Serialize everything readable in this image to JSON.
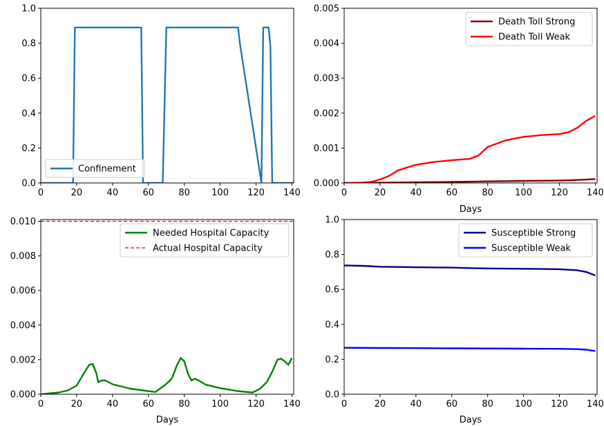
{
  "chart_data": [
    {
      "id": "confinement",
      "type": "line",
      "xlabel": "",
      "ylabel": "",
      "xlim": [
        0,
        141
      ],
      "ylim": [
        0,
        1.0
      ],
      "xticks": [
        "0",
        "20",
        "40",
        "60",
        "80",
        "100",
        "120",
        "140"
      ],
      "xtick_values": [
        0,
        20,
        40,
        60,
        80,
        100,
        120,
        140
      ],
      "yticks": [
        "0.0",
        "0.2",
        "0.4",
        "0.6",
        "0.8",
        "1.0"
      ],
      "ytick_values": [
        0,
        0.2,
        0.4,
        0.6,
        0.8,
        1.0
      ],
      "legend_placement": "lower-left",
      "series": [
        {
          "name": "Confinement",
          "color": "#1f77b4",
          "dash": false,
          "x": [
            0,
            18,
            19,
            56,
            57,
            68,
            70,
            110,
            111,
            123,
            124,
            127,
            128,
            129,
            141
          ],
          "y": [
            0,
            0,
            0.89,
            0.89,
            0,
            0,
            0.89,
            0.89,
            0.8,
            0,
            0.89,
            0.89,
            0.78,
            0,
            0
          ]
        }
      ]
    },
    {
      "id": "death-toll",
      "type": "line",
      "xlabel": "Days",
      "ylabel": "",
      "xlim": [
        0,
        141
      ],
      "ylim": [
        0,
        0.005
      ],
      "xticks": [
        "0",
        "20",
        "40",
        "60",
        "80",
        "100",
        "120",
        "140"
      ],
      "xtick_values": [
        0,
        20,
        40,
        60,
        80,
        100,
        120,
        140
      ],
      "yticks": [
        "0.000",
        "0.001",
        "0.002",
        "0.003",
        "0.004",
        "0.005"
      ],
      "ytick_values": [
        0,
        0.001,
        0.002,
        0.003,
        0.004,
        0.005
      ],
      "legend_placement": "upper-right",
      "series": [
        {
          "name": "Death Toll Strong",
          "color": "#8b0000",
          "dash": false,
          "x": [
            0,
            20,
            40,
            60,
            80,
            100,
            120,
            130,
            140
          ],
          "y": [
            0,
            8e-06,
            2e-05,
            3e-05,
            4.5e-05,
            6e-05,
            7e-05,
            8.5e-05,
            0.00011
          ]
        },
        {
          "name": "Death Toll Weak",
          "color": "#ff0000",
          "dash": false,
          "x": [
            0,
            10,
            15,
            20,
            25,
            30,
            35,
            40,
            50,
            60,
            70,
            75,
            80,
            90,
            100,
            110,
            120,
            125,
            130,
            135,
            140
          ],
          "y": [
            0,
            1e-05,
            3e-05,
            0.0001,
            0.0002,
            0.00036,
            0.00044,
            0.00052,
            0.0006,
            0.00065,
            0.00069,
            0.00079,
            0.00103,
            0.00122,
            0.00132,
            0.00137,
            0.0014,
            0.00145,
            0.00158,
            0.00178,
            0.00192
          ]
        }
      ]
    },
    {
      "id": "hospital",
      "type": "line",
      "xlabel": "Days",
      "ylabel": "",
      "xlim": [
        0,
        141
      ],
      "ylim": [
        0,
        0.0101
      ],
      "xticks": [
        "0",
        "20",
        "40",
        "60",
        "80",
        "100",
        "120",
        "140"
      ],
      "xtick_values": [
        0,
        20,
        40,
        60,
        80,
        100,
        120,
        140
      ],
      "yticks": [
        "0.000",
        "0.002",
        "0.004",
        "0.006",
        "0.008",
        "0.010"
      ],
      "ytick_values": [
        0,
        0.002,
        0.004,
        0.006,
        0.008,
        0.01
      ],
      "legend_placement": "upper-right",
      "series": [
        {
          "name": "Needed Hospital Capacity",
          "color": "#008000",
          "dash": false,
          "x": [
            0,
            10,
            15,
            20,
            24,
            27,
            29,
            31,
            32,
            34,
            36,
            40,
            50,
            60,
            64,
            70,
            73,
            76,
            78,
            80,
            82,
            84,
            86,
            88,
            92,
            100,
            110,
            118,
            122,
            126,
            129,
            132,
            134,
            136,
            138,
            140
          ],
          "y": [
            0,
            0.0001,
            0.00022,
            0.0005,
            0.0012,
            0.0017,
            0.00175,
            0.0012,
            0.0007,
            0.0008,
            0.0008,
            0.00058,
            0.00032,
            0.00018,
            0.00013,
            0.0006,
            0.0009,
            0.0017,
            0.0021,
            0.0019,
            0.0012,
            0.0008,
            0.0009,
            0.0008,
            0.00055,
            0.00035,
            0.00018,
            0.0001,
            0.0003,
            0.0007,
            0.0013,
            0.002,
            0.00205,
            0.0019,
            0.0017,
            0.0021
          ]
        },
        {
          "name": "Actual Hospital Capacity",
          "color": "#ff0000",
          "dash": true,
          "x": [
            0,
            141
          ],
          "y": [
            0.01,
            0.01
          ]
        }
      ]
    },
    {
      "id": "susceptible",
      "type": "line",
      "xlabel": "Days",
      "ylabel": "",
      "xlim": [
        0,
        141
      ],
      "ylim": [
        0,
        1.0
      ],
      "xticks": [
        "0",
        "20",
        "40",
        "60",
        "80",
        "100",
        "120",
        "140"
      ],
      "xtick_values": [
        0,
        20,
        40,
        60,
        80,
        100,
        120,
        140
      ],
      "yticks": [
        "0.0",
        "0.2",
        "0.4",
        "0.6",
        "0.8",
        "1.0"
      ],
      "ytick_values": [
        0,
        0.2,
        0.4,
        0.6,
        0.8,
        1.0
      ],
      "legend_placement": "upper-right",
      "series": [
        {
          "name": "Susceptible Strong",
          "color": "#00008b",
          "dash": false,
          "x": [
            0,
            10,
            20,
            40,
            60,
            70,
            80,
            100,
            120,
            130,
            135,
            140
          ],
          "y": [
            0.737,
            0.735,
            0.73,
            0.727,
            0.725,
            0.722,
            0.72,
            0.718,
            0.716,
            0.71,
            0.7,
            0.68
          ]
        },
        {
          "name": "Susceptible Weak",
          "color": "#0000ff",
          "dash": false,
          "x": [
            0,
            20,
            40,
            60,
            80,
            100,
            120,
            130,
            135,
            140
          ],
          "y": [
            0.266,
            0.265,
            0.264,
            0.263,
            0.262,
            0.261,
            0.26,
            0.258,
            0.255,
            0.247
          ]
        }
      ]
    }
  ]
}
